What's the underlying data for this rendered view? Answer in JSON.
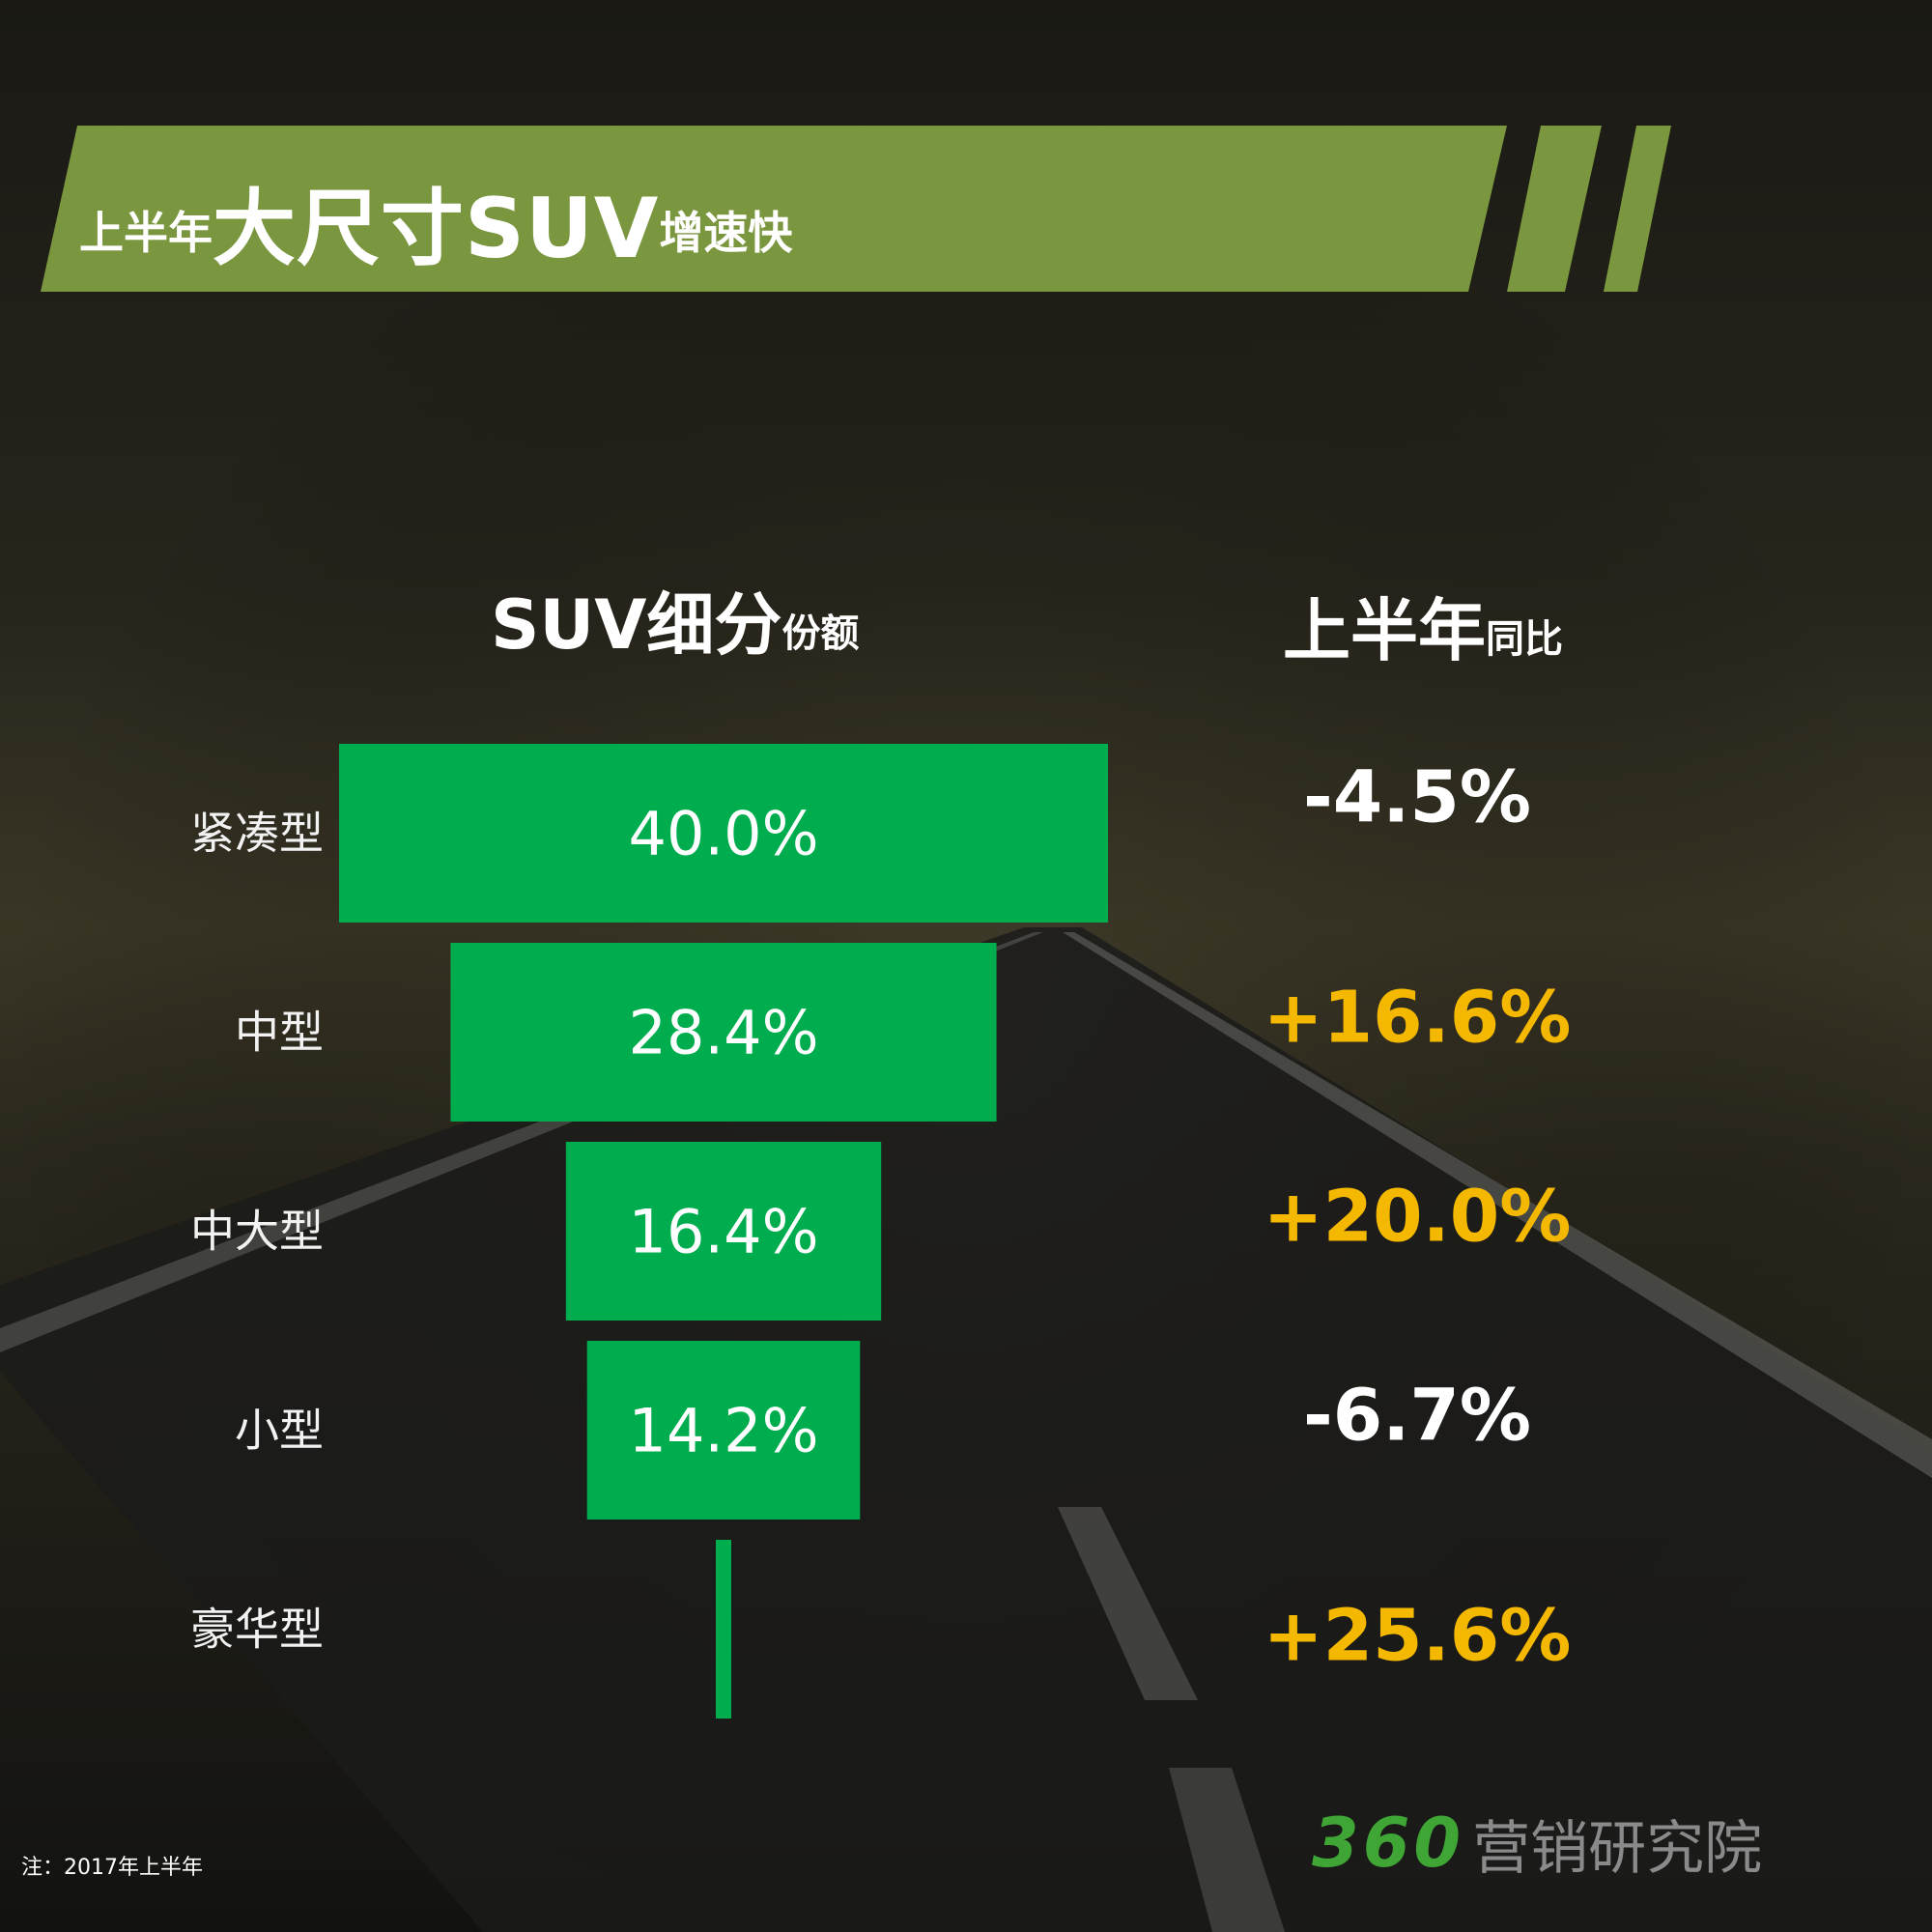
{
  "title": {
    "prefix": "上半年",
    "highlight": "大尺寸SUV",
    "suffix": "增速快"
  },
  "headers": {
    "share_big": "SUV细分",
    "share_small": "份额",
    "yoy_big": "上半年",
    "yoy_small": "同比"
  },
  "chart_data": {
    "type": "bar",
    "orientation": "horizontal-centered (funnel)",
    "categories": [
      "紧凑型",
      "中型",
      "中大型",
      "小型",
      "豪华型"
    ],
    "series": [
      {
        "name": "份额",
        "values": [
          40.0,
          28.4,
          16.4,
          14.2,
          0.8
        ],
        "labels": [
          "40.0%",
          "28.4%",
          "16.4%",
          "14.2%",
          ""
        ]
      }
    ],
    "yoy": {
      "values": [
        -4.5,
        16.6,
        20.0,
        -6.7,
        25.6
      ],
      "labels": [
        "-4.5%",
        "+16.6%",
        "+20.0%",
        "-6.7%",
        "+25.6%"
      ]
    },
    "colors": {
      "bar": "#00ad4e",
      "negative": "#ffffff",
      "positive": "#f5b800"
    },
    "grid": false,
    "legend": "none"
  },
  "note": "注：2017年上半年",
  "logo": {
    "number": "360",
    "name": "营销研究院"
  },
  "colors": {
    "banner": "#7a963e",
    "logo_green": "#3fa535"
  }
}
